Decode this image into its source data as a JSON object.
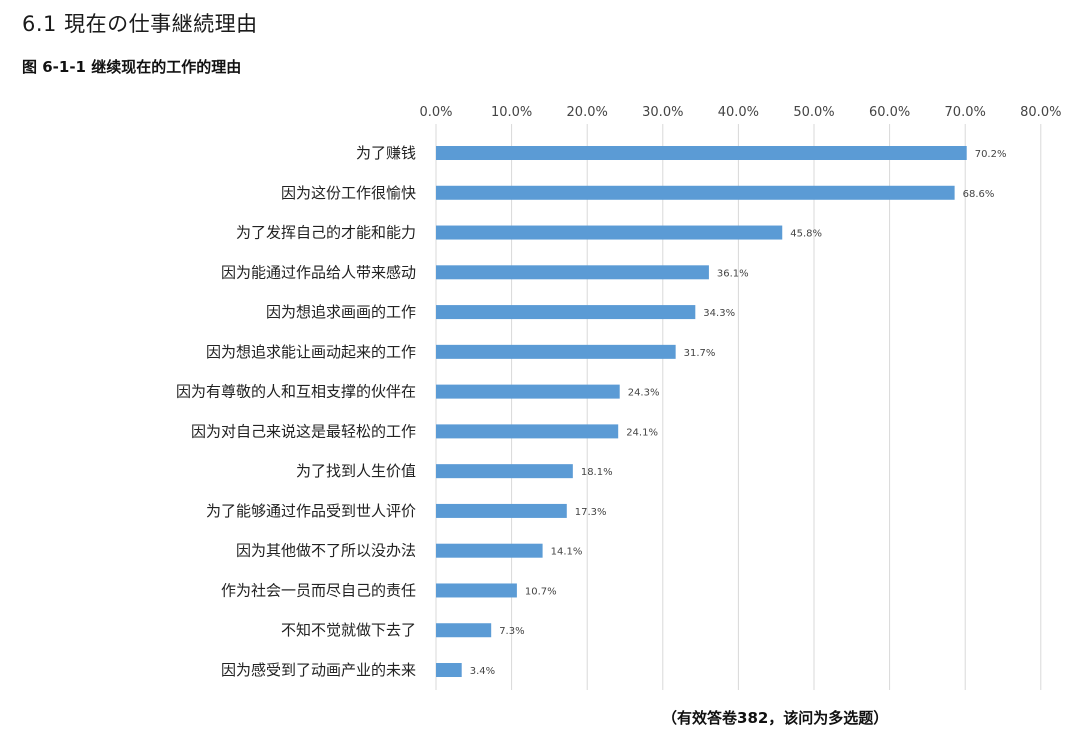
{
  "header": {
    "section_title": "6.1 現在の仕事継続理由",
    "figure_caption": "图 6-1-1  继续现在的工作的理由"
  },
  "footer": {
    "note": "（有效答卷382，该问为多选题）"
  },
  "colors": {
    "bar": "#5b9bd5",
    "grid": "#d9d9d9"
  },
  "chart_data": {
    "type": "bar",
    "orientation": "horizontal",
    "categories": [
      "为了赚钱",
      "因为这份工作很愉快",
      "为了发挥自己的才能和能力",
      "因为能通过作品给人带来感动",
      "因为想追求画画的工作",
      "因为想追求能让画动起来的工作",
      "因为有尊敬的人和互相支撑的伙伴在",
      "因为对自己来说这是最轻松的工作",
      "为了找到人生价值",
      "为了能够通过作品受到世人评价",
      "因为其他做不了所以没办法",
      "作为社会一员而尽自己的责任",
      "不知不觉就做下去了",
      "因为感受到了动画产业的未来"
    ],
    "values": [
      70.2,
      68.6,
      45.8,
      36.1,
      34.3,
      31.7,
      24.3,
      24.1,
      18.1,
      17.3,
      14.1,
      10.7,
      7.3,
      3.4
    ],
    "value_labels": [
      "70.2%",
      "68.6%",
      "45.8%",
      "36.1%",
      "34.3%",
      "31.7%",
      "24.3%",
      "24.1%",
      "18.1%",
      "17.3%",
      "14.1%",
      "10.7%",
      "7.3%",
      "3.4%"
    ],
    "xlim": [
      0,
      80
    ],
    "x_ticks": [
      0,
      10,
      20,
      30,
      40,
      50,
      60,
      70,
      80
    ],
    "x_tick_labels": [
      "0.0%",
      "10.0%",
      "20.0%",
      "30.0%",
      "40.0%",
      "50.0%",
      "60.0%",
      "70.0%",
      "80.0%"
    ],
    "axis_position": "top",
    "grid": true,
    "legend": "none"
  }
}
